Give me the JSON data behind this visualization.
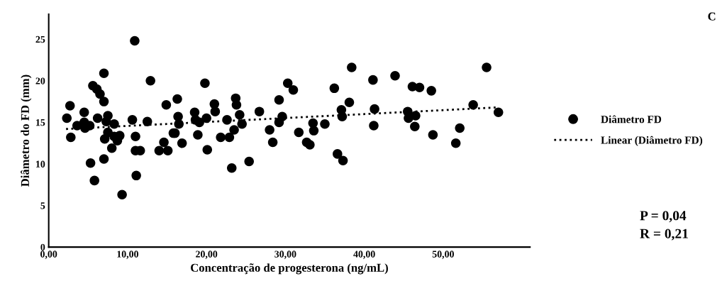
{
  "chart_data": {
    "type": "scatter",
    "xlabel": "Concentração de progesterona (ng/mL)",
    "ylabel": "Diâmetro do FD (mm)",
    "xlim": [
      0,
      61
    ],
    "ylim": [
      0,
      28
    ],
    "xticks": [
      {
        "value": 0,
        "label": "0,00"
      },
      {
        "value": 10,
        "label": "10,00"
      },
      {
        "value": 20,
        "label": "20,00"
      },
      {
        "value": 30,
        "label": "30,00"
      },
      {
        "value": 40,
        "label": "40,00"
      },
      {
        "value": 50,
        "label": "50,00"
      }
    ],
    "yticks": [
      0,
      5,
      10,
      15,
      20,
      25
    ],
    "grid": false,
    "legend": "right",
    "marker": "circle",
    "annotations": [
      "C",
      "P = 0,04",
      "R = 0,21"
    ],
    "series": [
      {
        "name": "Diâmetro FD",
        "color": "#000000",
        "x": [
          2.3,
          2.7,
          2.8,
          3.6,
          4.5,
          4.5,
          4.6,
          5.2,
          5.3,
          5.8,
          5.6,
          6.1,
          6.5,
          6.2,
          7.0,
          7.0,
          7.0,
          7.5,
          7.3,
          7.1,
          7.5,
          8.3,
          8.3,
          8.7,
          9.0,
          8.0,
          9.3,
          10.6,
          10.9,
          11.0,
          11.0,
          11.6,
          11.1,
          12.5,
          12.9,
          14.9,
          14.6,
          14.0,
          15.1,
          15.8,
          16.3,
          16.4,
          16.5,
          16.0,
          16.9,
          18.5,
          18.6,
          19.1,
          18.9,
          19.8,
          20.0,
          20.1,
          21.0,
          21.1,
          21.8,
          22.6,
          22.9,
          23.2,
          23.5,
          23.7,
          23.8,
          24.2,
          24.5,
          25.4,
          26.7,
          28.0,
          28.4,
          29.2,
          29.6,
          29.2,
          30.3,
          31.0,
          31.7,
          32.7,
          33.1,
          33.5,
          33.6,
          35.0,
          36.2,
          36.6,
          37.3,
          37.1,
          37.2,
          38.1,
          38.4,
          41.1,
          41.3,
          41.2,
          43.9,
          45.5,
          45.6,
          46.5,
          46.4,
          46.1,
          47.0,
          48.5,
          48.7,
          51.6,
          52.1,
          53.8,
          55.5,
          57.0
        ],
        "values": [
          15.5,
          17.0,
          13.2,
          14.6,
          16.2,
          15.0,
          14.3,
          14.6,
          10.1,
          8.0,
          19.4,
          19.0,
          18.4,
          15.5,
          20.9,
          17.5,
          10.6,
          15.8,
          15.1,
          13.0,
          13.8,
          14.8,
          13.3,
          12.8,
          13.4,
          11.9,
          6.3,
          15.3,
          24.8,
          13.3,
          11.6,
          11.6,
          8.6,
          15.1,
          20.0,
          17.1,
          12.6,
          11.6,
          11.6,
          13.7,
          17.8,
          15.7,
          14.8,
          13.7,
          12.5,
          16.2,
          15.3,
          15.0,
          13.5,
          19.7,
          15.5,
          11.7,
          17.2,
          16.3,
          13.2,
          15.3,
          13.2,
          9.5,
          14.1,
          17.9,
          17.1,
          15.9,
          14.8,
          10.3,
          16.3,
          14.1,
          12.6,
          17.7,
          15.7,
          15.0,
          19.7,
          18.9,
          13.8,
          12.6,
          12.3,
          14.9,
          14.0,
          14.8,
          19.1,
          11.2,
          10.4,
          16.5,
          15.7,
          17.4,
          21.6,
          20.1,
          16.6,
          14.6,
          20.6,
          16.3,
          15.5,
          15.8,
          14.5,
          19.3,
          19.2,
          18.8,
          13.5,
          12.5,
          14.3,
          17.1,
          21.6,
          16.2
        ]
      },
      {
        "name": "Linear (Diâmetro FD)",
        "color": "#000000",
        "type": "line",
        "line_style": "dotted",
        "marker": "none",
        "x": [
          2.2,
          57.0
        ],
        "values": [
          14.2,
          16.8
        ]
      }
    ]
  }
}
